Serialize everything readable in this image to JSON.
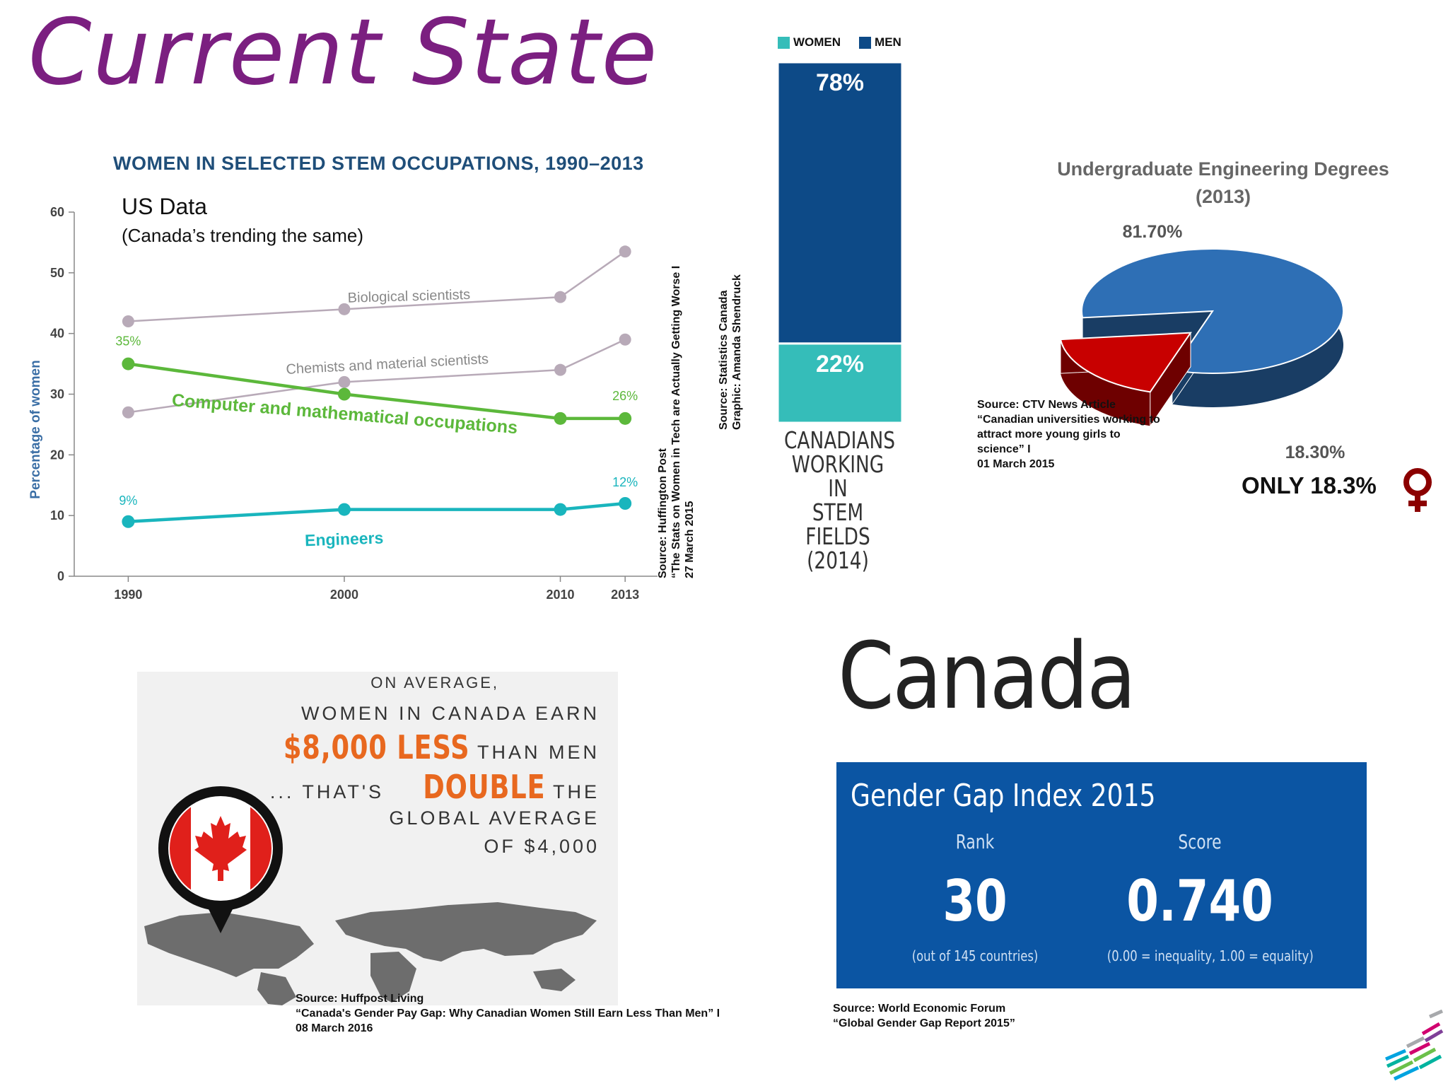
{
  "slide": {
    "title": "Current State"
  },
  "us_chart": {
    "title": "WOMEN IN SELECTED STEM OCCUPATIONS, 1990–2013",
    "note_title": "US Data",
    "note_subtitle": "(Canada’s trending the same)",
    "source": [
      "Source: Huffington Post",
      "“The Stats on Women in Tech are Actually Getting Worse I",
      "27 March 2015"
    ]
  },
  "stem_chart": {
    "caption": [
      "CANADIANS",
      "WORKING IN",
      "STEM FIELDS",
      "(2014)"
    ],
    "source": [
      "Source: Statistics Canada",
      "Graphic: Amanda Shendruck"
    ]
  },
  "pie_chart": {
    "title": [
      "Undergraduate Engineering Degrees",
      "(2013)"
    ],
    "only_text": "ONLY 18.3%",
    "female_icon": "female-symbol-icon",
    "source": [
      "Source: CTV News Article",
      "“Canadian universities working to",
      "attract more young girls to",
      "science” I",
      "01 March 2015"
    ]
  },
  "pay_gap": {
    "line1": "ON AVERAGE,",
    "line2": "WOMEN IN CANADA EARN",
    "line3_big": "$8,000 LESS",
    "line3_rest": " THAN MEN",
    "line4_pre": "... THAT'S ",
    "line4_big": "DOUBLE",
    "line4_rest": " THE",
    "line5": "GLOBAL AVERAGE",
    "line6": "OF $4,000",
    "flag_icon": "canada-flag-pin-icon",
    "map_icon": "world-map-icon",
    "accent": "#e8681f",
    "source": [
      "Source: Huffpost Living",
      "“Canada's Gender Pay Gap: Why Canadian Women Still Earn Less Than Men” I",
      "08 March 2016"
    ]
  },
  "gender_gap": {
    "country": "Canada",
    "title": "Gender Gap Index 2015",
    "rank_label": "Rank",
    "rank_value": "30",
    "rank_note": "(out of 145 countries)",
    "score_label": "Score",
    "score_value": "0.740",
    "score_note": "(0.00 = inequality, 1.00 = equality)",
    "panel_color": "#0b55a3",
    "source": [
      "Source: World Economic Forum",
      "“Global Gender Gap Report 2015”"
    ]
  },
  "logo": {
    "icon": "ibm-logo-icon"
  },
  "chart_data": [
    {
      "type": "line",
      "title": "WOMEN IN SELECTED STEM OCCUPATIONS, 1990–2013",
      "xlabel": "",
      "ylabel": "Percentage of women",
      "x": [
        1990,
        2000,
        2010,
        2013
      ],
      "xticks": [
        "1990",
        "2000",
        "2010",
        "2013"
      ],
      "ylim": [
        0,
        60
      ],
      "yticks": [
        "0",
        "10",
        "20",
        "30",
        "40",
        "50",
        "60"
      ],
      "grid": false,
      "series": [
        {
          "name": "Biological scientists",
          "values": [
            42,
            44,
            46,
            53.5
          ],
          "color": "#b8aab8",
          "labels": []
        },
        {
          "name": "Chemists and material scientists",
          "values": [
            27,
            32,
            34,
            39
          ],
          "color": "#b8aab8",
          "labels": []
        },
        {
          "name": "Computer and mathematical occupations",
          "values": [
            35,
            30,
            26,
            26
          ],
          "color": "#5cb83b",
          "labels": [
            "35%",
            "",
            "",
            "26%"
          ]
        },
        {
          "name": "Engineers",
          "values": [
            9,
            11,
            11,
            12
          ],
          "color": "#19b5bd",
          "labels": [
            "9%",
            "",
            "",
            "12%"
          ]
        }
      ]
    },
    {
      "type": "bar",
      "stacked": true,
      "categories": [
        "CANADIANS WORKING IN STEM FIELDS (2014)"
      ],
      "series": [
        {
          "name": "WOMEN",
          "values": [
            22
          ],
          "labels": [
            "22%"
          ],
          "color": "#35bdb9"
        },
        {
          "name": "MEN",
          "values": [
            78
          ],
          "labels": [
            "78%"
          ],
          "color": "#0d4a87"
        }
      ],
      "ylim": [
        0,
        100
      ],
      "legend": "top"
    },
    {
      "type": "pie",
      "title": "Undergraduate Engineering Degrees (2013)",
      "slices": [
        {
          "value": 81.7,
          "label": "81.70%",
          "color": "#2e6fb5"
        },
        {
          "value": 18.3,
          "label": "18.30%",
          "color": "#c80000"
        }
      ],
      "three_d": true,
      "legend": "none"
    }
  ]
}
